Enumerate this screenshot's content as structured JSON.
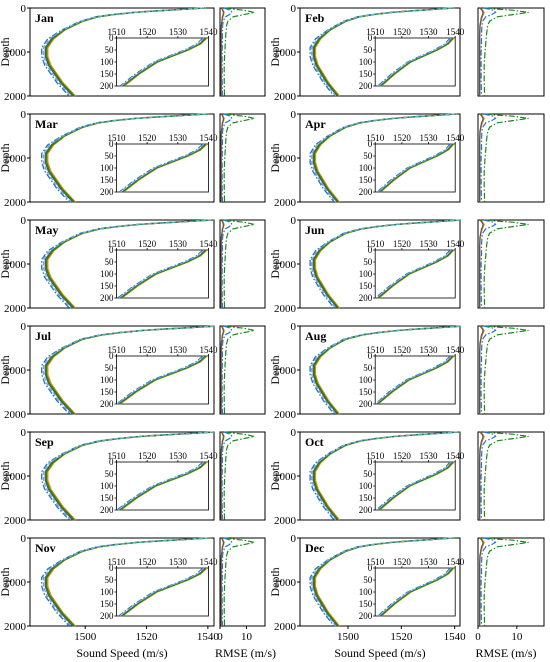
{
  "chart_data": {
    "type": "line",
    "layout": "6 rows x 2 columns of monthly panels; each panel = sound speed profile (with 0-200 m zoom inset) + RMSE profile",
    "months": [
      "Jan",
      "Feb",
      "Mar",
      "Apr",
      "May",
      "Jun",
      "Jul",
      "Aug",
      "Sep",
      "Oct",
      "Nov",
      "Dec"
    ],
    "ylabel": "Depth",
    "xlabel_speed": "Sound Speed (m/s)",
    "xlabel_rmse": "RMSE (m/s)",
    "depth_axis": {
      "ticks": [
        "0",
        "1000",
        "2000"
      ],
      "ylim": [
        2000,
        0
      ]
    },
    "speed_axis": {
      "xlim": [
        1482,
        1542
      ],
      "ticks": [
        "1500",
        "1520",
        "1540"
      ]
    },
    "rmse_axis": {
      "xlim": [
        0,
        17
      ],
      "ticks": [
        "0",
        "10"
      ]
    },
    "inset": {
      "xlim": [
        1510,
        1540
      ],
      "xticks": [
        "1510",
        "1520",
        "1530",
        "1540"
      ],
      "ylim": [
        200,
        0
      ],
      "yticks": [
        "0",
        "50",
        "100",
        "150",
        "200"
      ]
    },
    "colors": {
      "blue": "#1f6fd6",
      "orange": "#f08c00",
      "green": "#1a8a1a",
      "gray": "#555555",
      "light_blue": "#6fa8dc"
    },
    "speed_profile_template": {
      "depth": [
        0,
        10,
        25,
        50,
        75,
        100,
        150,
        200,
        300,
        400,
        500,
        700,
        900,
        1100,
        1300,
        1500,
        1700,
        2000
      ],
      "speed": [
        1539,
        1537,
        1533,
        1527,
        1521,
        1516,
        1509,
        1504,
        1499,
        1496,
        1493,
        1489,
        1487,
        1487,
        1488,
        1490,
        1492,
        1496
      ]
    },
    "rmse_profiles": {
      "depth": [
        0,
        20,
        50,
        100,
        150,
        200,
        300,
        400,
        600,
        800,
        1000,
        1300,
        1600,
        2000
      ],
      "model_a": [
        2.0,
        4.0,
        9.0,
        13.0,
        9.0,
        5.0,
        3.0,
        2.5,
        2.2,
        2.0,
        1.8,
        1.6,
        1.6,
        1.7
      ],
      "model_b": [
        1.5,
        2.5,
        4.0,
        4.5,
        3.5,
        2.0,
        1.2,
        1.0,
        0.9,
        0.9,
        0.8,
        0.8,
        0.8,
        0.9
      ],
      "model_c": [
        0.6,
        0.8,
        1.2,
        1.6,
        1.4,
        1.1,
        0.8,
        0.6,
        0.5,
        0.5,
        0.5,
        0.5,
        0.5,
        0.5
      ],
      "model_d": [
        0.5,
        0.7,
        1.0,
        1.3,
        1.2,
        0.9,
        0.7,
        0.5,
        0.4,
        0.4,
        0.4,
        0.4,
        0.4,
        0.4
      ]
    },
    "series_styles": [
      {
        "color": "blue",
        "dash": "dashdot"
      },
      {
        "color": "orange",
        "dash": "solid"
      },
      {
        "color": "green",
        "dash": "solid"
      },
      {
        "color": "gray",
        "dash": "solid"
      }
    ]
  }
}
